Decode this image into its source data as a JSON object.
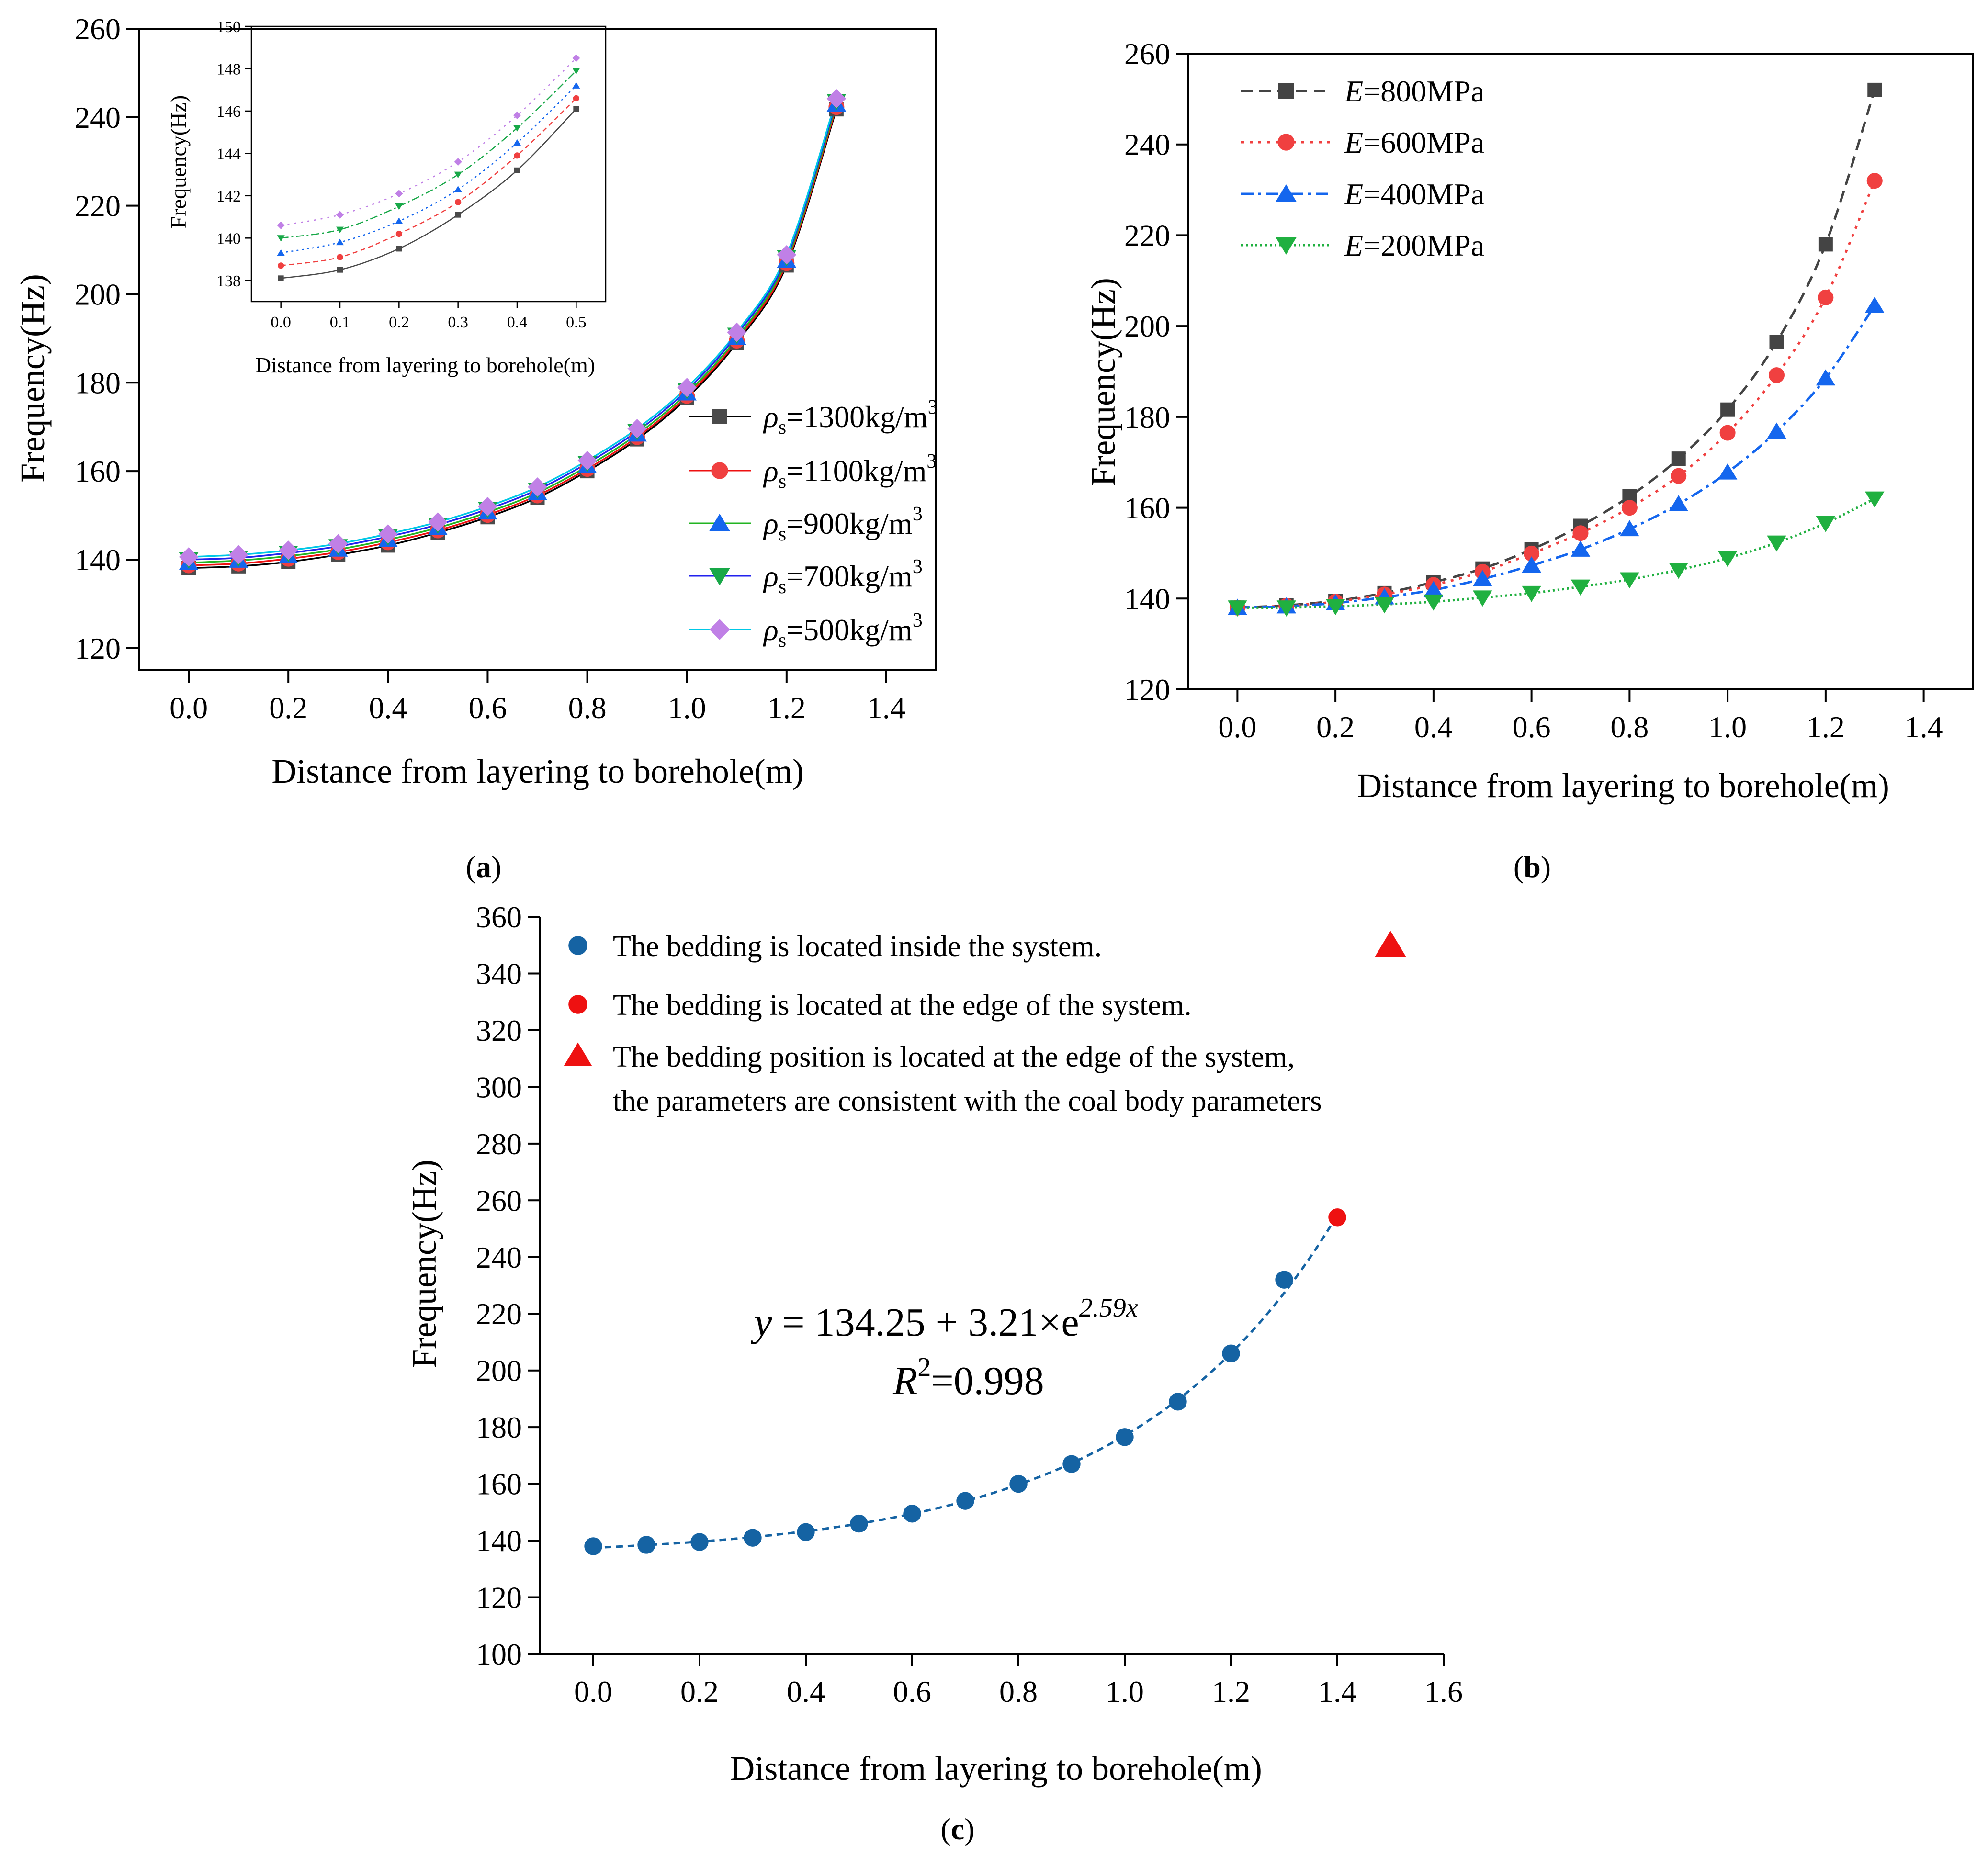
{
  "figure": {
    "panel_labels": [
      {
        "prefix": "(",
        "letter": "a",
        "suffix": ")"
      },
      {
        "prefix": "(",
        "letter": "b",
        "suffix": ")"
      },
      {
        "prefix": "(",
        "letter": "c",
        "suffix": ")"
      }
    ],
    "colors": {
      "s1300": "#000000",
      "s1100": "#ee1111",
      "s900": "#22b422",
      "s700": "#2222ee",
      "s500": "#00c8e6",
      "m1300": "#4a4a4a",
      "m1100": "#f04040",
      "m900": "#1466ee",
      "m700": "#18a848",
      "m500": "#c080e6",
      "E800": "#444444",
      "E600": "#f04040",
      "E400": "#1466ee",
      "E200": "#20b040",
      "c_inside": "#1563a3",
      "c_edge": "#ee1111",
      "c_triangle": "#ee1111"
    }
  },
  "chart_data": [
    {
      "id": "a",
      "type": "line",
      "title": "",
      "xlabel": "Distance from layering  to borehole(m)",
      "ylabel": "Frequency(Hz)",
      "xlim": [
        -0.1,
        1.5
      ],
      "ylim": [
        115,
        260
      ],
      "xticks": [
        "0.0",
        "0.2",
        "0.4",
        "0.6",
        "0.8",
        "1.0",
        "1.2",
        "1.4"
      ],
      "yticks": [
        "120",
        "140",
        "160",
        "180",
        "200",
        "220",
        "240",
        "260"
      ],
      "legend_position": "right",
      "x": [
        0.0,
        0.1,
        0.2,
        0.3,
        0.4,
        0.5,
        0.6,
        0.7,
        0.8,
        0.9,
        1.0,
        1.1,
        1.2,
        1.3
      ],
      "series": [
        {
          "name": "ρs=1300kg/m3",
          "label": {
            "sym": "ρ",
            "sub": "s",
            "text": "=1300kg/m",
            "sup": "3"
          },
          "marker": "square",
          "values": [
            138.1,
            138.5,
            139.5,
            141.1,
            143.2,
            146.1,
            149.6,
            154.0,
            160.0,
            167.2,
            176.5,
            189.0,
            206.5,
            241.8
          ]
        },
        {
          "name": "ρs=1100kg/m3",
          "label": {
            "sym": "ρ",
            "sub": "s",
            "text": "=1100kg/m",
            "sup": "3"
          },
          "marker": "circle",
          "values": [
            138.7,
            139.1,
            140.2,
            141.7,
            143.9,
            146.6,
            150.1,
            154.5,
            160.5,
            167.7,
            177.0,
            189.5,
            207.0,
            242.3
          ]
        },
        {
          "name": "ρs=900kg/m3",
          "label": {
            "sym": "ρ",
            "sub": "s",
            "text": "=900kg/m",
            "sup": "3"
          },
          "marker": "triangle-up",
          "values": [
            139.3,
            139.8,
            140.8,
            142.3,
            144.5,
            147.2,
            150.7,
            155.1,
            161.1,
            168.3,
            177.6,
            190.1,
            207.6,
            242.9
          ]
        },
        {
          "name": "ρs=700kg/m3",
          "label": {
            "sym": "ρ",
            "sub": "s",
            "text": "=700kg/m",
            "sup": "3"
          },
          "marker": "triangle-down",
          "values": [
            140.0,
            140.4,
            141.5,
            143.0,
            145.2,
            147.9,
            151.4,
            155.8,
            161.8,
            169.0,
            178.3,
            190.8,
            208.3,
            243.6
          ]
        },
        {
          "name": "ρs=500kg/m3",
          "label": {
            "sym": "ρ",
            "sub": "s",
            "text": "=500kg/m",
            "sup": "3"
          },
          "marker": "diamond",
          "values": [
            140.6,
            141.1,
            142.1,
            143.6,
            145.8,
            148.5,
            152.0,
            156.4,
            162.4,
            169.6,
            178.9,
            191.4,
            208.9,
            244.2
          ]
        }
      ]
    },
    {
      "id": "a-inset",
      "type": "line",
      "title": "",
      "xlabel": "Distance from layering  to borehole(m)",
      "ylabel": "Frequency(Hz)",
      "xlim": [
        -0.05,
        0.55
      ],
      "ylim": [
        137,
        150
      ],
      "xticks": [
        "0.0",
        "0.1",
        "0.2",
        "0.3",
        "0.4",
        "0.5"
      ],
      "yticks": [
        "138",
        "140",
        "142",
        "144",
        "146",
        "148",
        "150"
      ],
      "x": [
        0.0,
        0.1,
        0.2,
        0.3,
        0.4,
        0.5
      ],
      "series": [
        {
          "name": "ρs=1300kg/m3",
          "marker": "square",
          "values": [
            138.1,
            138.5,
            139.5,
            141.1,
            143.2,
            146.1
          ]
        },
        {
          "name": "ρs=1100kg/m3",
          "marker": "circle",
          "values": [
            138.7,
            139.1,
            140.2,
            141.7,
            143.9,
            146.6
          ]
        },
        {
          "name": "ρs=900kg/m3",
          "marker": "triangle-up",
          "values": [
            139.3,
            139.8,
            140.8,
            142.3,
            144.5,
            147.2
          ]
        },
        {
          "name": "ρs=700kg/m3",
          "marker": "triangle-down",
          "values": [
            140.0,
            140.4,
            141.5,
            143.0,
            145.2,
            147.9
          ]
        },
        {
          "name": "ρs=500kg/m3",
          "marker": "diamond",
          "values": [
            140.6,
            141.1,
            142.1,
            143.6,
            145.8,
            148.5
          ]
        }
      ]
    },
    {
      "id": "b",
      "type": "line",
      "title": "",
      "xlabel": "Distance from layering  to borehole(m)",
      "ylabel": "Frequency(Hz)",
      "xlim": [
        -0.1,
        1.5
      ],
      "ylim": [
        120,
        260
      ],
      "xticks": [
        "0.0",
        "0.2",
        "0.4",
        "0.6",
        "0.8",
        "1.0",
        "1.2",
        "1.4"
      ],
      "yticks": [
        "120",
        "140",
        "160",
        "180",
        "200",
        "220",
        "240",
        "260"
      ],
      "legend_position": "top-left",
      "x": [
        0.0,
        0.1,
        0.2,
        0.3,
        0.4,
        0.5,
        0.6,
        0.7,
        0.8,
        0.9,
        1.0,
        1.1,
        1.2,
        1.3
      ],
      "series": [
        {
          "name": "E=800MPa",
          "label": {
            "var": "E",
            "text": "=800MPa"
          },
          "marker": "square",
          "dash": "24 14",
          "values": [
            138,
            138.5,
            139.5,
            141.2,
            143.6,
            146.6,
            150.8,
            156.0,
            162.5,
            170.8,
            181.6,
            196.5,
            218.0,
            252.0
          ]
        },
        {
          "name": "E=600MPa",
          "label": {
            "var": "E",
            "text": "=600MPa"
          },
          "marker": "circle",
          "dash": "6 12",
          "values": [
            138,
            138.4,
            139.3,
            140.9,
            143.0,
            145.9,
            149.9,
            154.4,
            160.0,
            167.0,
            176.5,
            189.2,
            206.3,
            232.0
          ]
        },
        {
          "name": "E=400MPa",
          "label": {
            "var": "E",
            "text": "=400MPa"
          },
          "marker": "triangle-up",
          "dash": "26 10 6 10",
          "values": [
            138,
            138.3,
            139.0,
            140.3,
            141.9,
            144.3,
            147.3,
            150.8,
            155.3,
            160.8,
            167.8,
            176.8,
            188.5,
            204.5
          ]
        },
        {
          "name": "E=200MPa",
          "label": {
            "var": "E",
            "text": "=200MPa"
          },
          "marker": "triangle-down",
          "dash": "4 6",
          "values": [
            138,
            138.0,
            138.3,
            138.7,
            139.3,
            140.2,
            141.2,
            142.6,
            144.2,
            146.3,
            148.9,
            152.3,
            156.6,
            162.0
          ]
        }
      ]
    },
    {
      "id": "c",
      "type": "scatter",
      "title": "",
      "xlabel": "Distance from layering  to borehole(m)",
      "ylabel": "Frequency(Hz)",
      "xlim": [
        -0.1,
        1.6
      ],
      "ylim": [
        100,
        360
      ],
      "xticks": [
        "0.0",
        "0.2",
        "0.4",
        "0.6",
        "0.8",
        "1.0",
        "1.2",
        "1.4",
        "1.6"
      ],
      "yticks": [
        "100",
        "120",
        "140",
        "160",
        "180",
        "200",
        "220",
        "240",
        "260",
        "280",
        "300",
        "320",
        "340",
        "360"
      ],
      "legend_position": "top",
      "series": [
        {
          "name": "The bedding is located inside the system.",
          "marker": "circle",
          "x": [
            0.0,
            0.1,
            0.2,
            0.3,
            0.4,
            0.5,
            0.6,
            0.7,
            0.8,
            0.9,
            1.0,
            1.1,
            1.2,
            1.3
          ],
          "values": [
            138,
            138.5,
            139.5,
            141,
            143,
            146,
            149.5,
            154,
            160,
            167,
            176.5,
            189,
            206,
            232
          ]
        },
        {
          "name": "The bedding is located at the edge of the system.",
          "marker": "circle",
          "x": [
            1.4
          ],
          "values": [
            254
          ]
        },
        {
          "name": "The bedding position is located at the edge of the system, the parameters are consistent with the coal body parameters",
          "marker": "triangle-up",
          "label_lines": [
            "The bedding position is located at the edge of the system,",
            "the parameters are consistent with the coal body parameters"
          ],
          "x": [
            1.5
          ],
          "values": [
            350
          ]
        }
      ],
      "fit": {
        "a": 134.25,
        "b": 3.21,
        "k": 2.59,
        "x_range": [
          0.0,
          1.4
        ],
        "eq_y": "y",
        "eq_mid": " = 134.25 + 3.21×e",
        "eq_sup": "2.59x",
        "r2_var": "R",
        "r2_sup": "2",
        "r2_rest": "=0.998"
      }
    }
  ]
}
